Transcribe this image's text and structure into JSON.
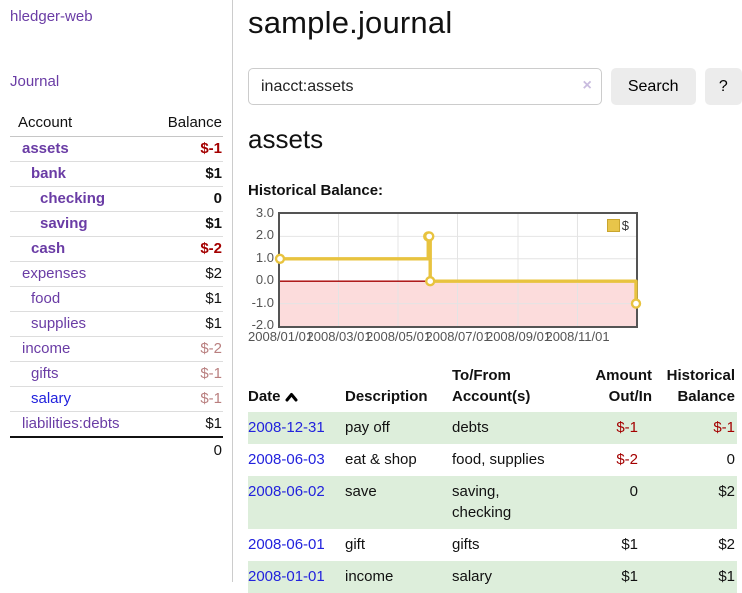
{
  "colors": {
    "link_purple": "#6a3ca5",
    "link_blue": "#2222dd",
    "negative": "#a40000",
    "negative_muted": "#b97f7f",
    "row_green": "#ddeedb",
    "chart_line": "#e8c33f",
    "chart_negative_fill": "#fcdcdc",
    "chart_zero_line": "#a40000",
    "chart_border": "#545454"
  },
  "sidebar": {
    "brand": "hledger-web",
    "journal": "Journal",
    "header": {
      "account": "Account",
      "balance": "Balance"
    },
    "accounts": [
      {
        "name": "assets",
        "depth": 1,
        "bold": true,
        "balance": "$-1",
        "link": "purple"
      },
      {
        "name": "bank",
        "depth": 2,
        "bold": true,
        "balance": "$1",
        "link": "purple"
      },
      {
        "name": "checking",
        "depth": 3,
        "bold": true,
        "balance": "0",
        "link": "purple"
      },
      {
        "name": "saving",
        "depth": 3,
        "bold": true,
        "balance": "$1",
        "link": "purple"
      },
      {
        "name": "cash",
        "depth": 2,
        "bold": true,
        "balance": "$-2",
        "link": "purple"
      },
      {
        "name": "expenses",
        "depth": 1,
        "bold": false,
        "balance": "$2",
        "link": "purple"
      },
      {
        "name": "food",
        "depth": 2,
        "bold": false,
        "balance": "$1",
        "link": "purple"
      },
      {
        "name": "supplies",
        "depth": 2,
        "bold": false,
        "balance": "$1",
        "link": "purple"
      },
      {
        "name": "income",
        "depth": 1,
        "bold": false,
        "balance": "$-2",
        "link": "purple"
      },
      {
        "name": "gifts",
        "depth": 2,
        "bold": false,
        "balance": "$-1",
        "link": "purple"
      },
      {
        "name": "salary",
        "depth": 2,
        "bold": false,
        "balance": "$-1",
        "link": "blue"
      },
      {
        "name": "liabilities:debts",
        "depth": 1,
        "bold": false,
        "balance": "$1",
        "link": "purple"
      }
    ],
    "total": "0"
  },
  "main": {
    "title": "sample.journal",
    "search": {
      "value": "inacct:assets",
      "clear_icon": "×",
      "button_label": "Search",
      "help_label": "?"
    },
    "account_heading": "assets"
  },
  "chart_data": {
    "type": "line",
    "step": true,
    "title": "Historical Balance:",
    "x_start": "2008-01-01",
    "x_end": "2008-12-31",
    "ylim": [
      -2,
      3
    ],
    "yticks": [
      3,
      2,
      1,
      0,
      -1,
      -2
    ],
    "xticks": [
      "2008/01/01",
      "2008/03/01",
      "2008/05/01",
      "2008/07/01",
      "2008/09/01",
      "2008/11/01"
    ],
    "series": [
      {
        "name": "$",
        "color": "#e8c33f",
        "points": [
          {
            "date": "2008-01-01",
            "value": 1
          },
          {
            "date": "2008-06-01",
            "value": 2
          },
          {
            "date": "2008-06-02",
            "value": 2
          },
          {
            "date": "2008-06-03",
            "value": 0
          },
          {
            "date": "2008-12-31",
            "value": -1
          }
        ]
      }
    ],
    "legend": {
      "position": "top-right",
      "label": "$"
    },
    "negative_region": {
      "below": 0,
      "fill": "#fcdcdc",
      "zero_line": "#a40000"
    },
    "grid": true
  },
  "register": {
    "headers": [
      {
        "lines": [
          "Date"
        ],
        "align": "left",
        "sortable": true,
        "sort_icon": "chevron-up-icon"
      },
      {
        "lines": [
          "Description"
        ],
        "align": "left"
      },
      {
        "lines": [
          "To/From",
          "Account(s)"
        ],
        "align": "left"
      },
      {
        "lines": [
          "Amount",
          "Out/In"
        ],
        "align": "right"
      },
      {
        "lines": [
          "Historical",
          "Balance"
        ],
        "align": "right"
      }
    ],
    "rows": [
      {
        "date": "2008-12-31",
        "description": "pay off",
        "accounts": "debts",
        "amount": "$-1",
        "balance": "$-1"
      },
      {
        "date": "2008-06-03",
        "description": "eat & shop",
        "accounts": "food, supplies",
        "amount": "$-2",
        "balance": "0"
      },
      {
        "date": "2008-06-02",
        "description": "save",
        "accounts": "saving, checking",
        "amount": "0",
        "balance": "$2"
      },
      {
        "date": "2008-06-01",
        "description": "gift",
        "accounts": "gifts",
        "amount": "$1",
        "balance": "$2"
      },
      {
        "date": "2008-01-01",
        "description": "income",
        "accounts": "salary",
        "amount": "$1",
        "balance": "$1"
      }
    ]
  }
}
